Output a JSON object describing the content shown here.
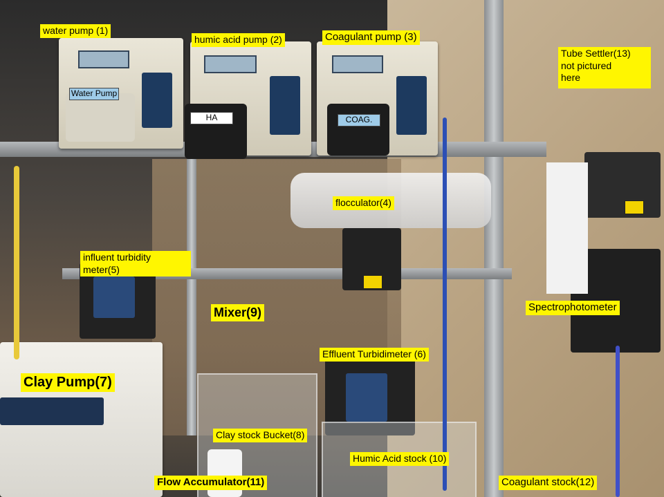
{
  "labels": {
    "water_pump": "water pump (1)",
    "humic_acid_pump": "humic acid pump (2)",
    "coagulant_pump": "Coagulant pump (3)",
    "tube_settler": "Tube Settler(13)\n not pictured\nhere",
    "flocculator": "flocculator(4)",
    "influent_turbidity_meter": "influent turbidity\nmeter(5)",
    "mixer": "Mixer(9)",
    "spectrophotometer": "Spectrophotometer",
    "effluent_turbidimeter": "Effluent Turbidimeter (6)",
    "clay_pump": "Clay Pump(7)",
    "clay_stock_bucket": "Clay stock Bucket(8)",
    "humic_acid_stock": "Humic Acid stock (10)",
    "flow_accumulator": "Flow Accumulator(11)",
    "coagulant_stock": "Coagulant stock(12)"
  },
  "equipment_tags": {
    "water_pump_tag": "Water Pump",
    "ha_tag": "HA",
    "coag_tag": "COAG."
  },
  "colors": {
    "label_bg": "#fff600",
    "pump_body": "#e6e1d0",
    "panel": "#1d3a5f"
  }
}
